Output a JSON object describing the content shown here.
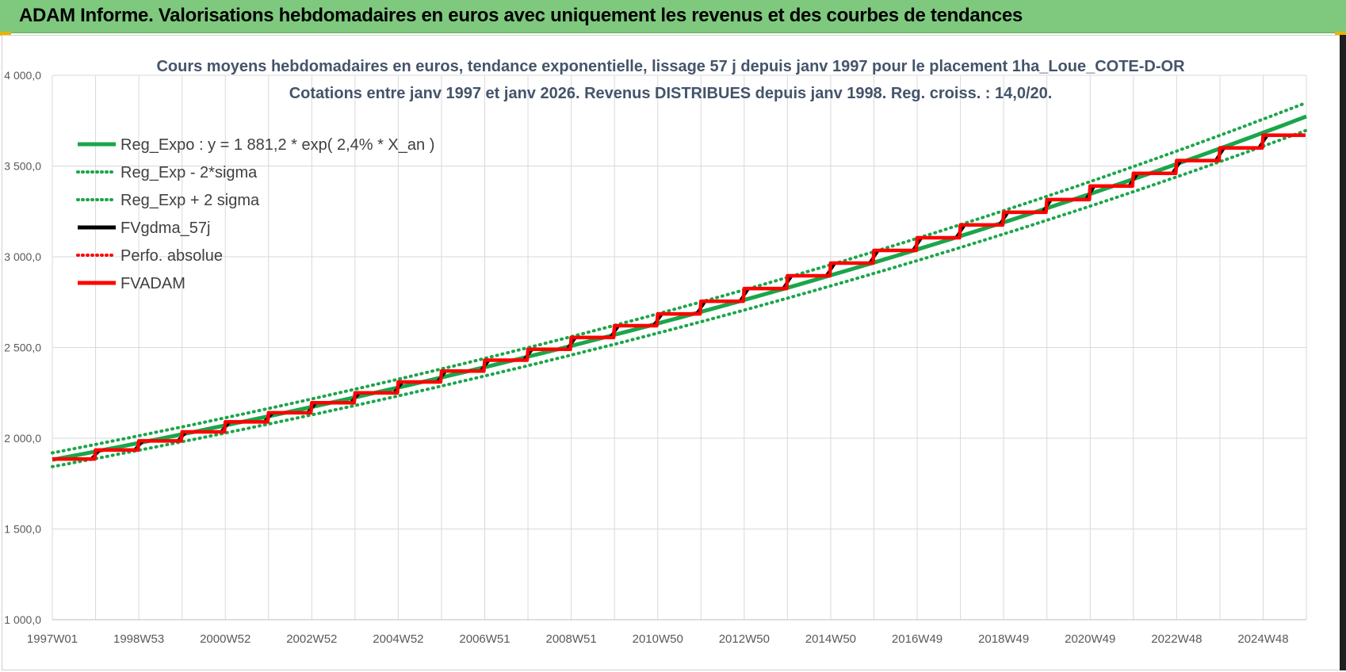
{
  "header": {
    "title": "ADAM Informe. Valorisations hebdomadaires en euros avec uniquement les revenus et des courbes de tendances"
  },
  "colors": {
    "banner": "#7ec97e",
    "trend": "#1aa64a",
    "band": "#1aa64a",
    "smooth": "#000000",
    "perf": "#ff0000",
    "fvadam": "#ff0000",
    "grid": "#d9d9d9"
  },
  "chart_data": {
    "type": "line",
    "title_line1": "Cours moyens hebdomadaires en euros, tendance exponentielle, lissage 57 j depuis janv 1997  pour le  placement 1ha_Loue_COTE-D-OR",
    "title_line2": "Cotations entre janv 1997 et janv 2026. Revenus DISTRIBUES depuis janv 1998.  Reg. croiss. : 14,0/20.",
    "ylim": [
      1000,
      4000
    ],
    "y_ticks": [
      "1 000,0",
      "1 500,0",
      "2 000,0",
      "2 500,0",
      "3 000,0",
      "3 500,0",
      "4 000,0"
    ],
    "y_tick_values": [
      1000,
      1500,
      2000,
      2500,
      3000,
      3500,
      4000
    ],
    "x_range_years": [
      1997.0,
      2026.0
    ],
    "x_ticks": [
      "1997W01",
      "1998W53",
      "2000W52",
      "2002W52",
      "2004W52",
      "2006W51",
      "2008W51",
      "2010W50",
      "2012W50",
      "2014W50",
      "2016W49",
      "2018W49",
      "2020W49",
      "2022W48",
      "2024W48"
    ],
    "x_tick_years": [
      1997.0,
      1999.0,
      2001.0,
      2003.0,
      2005.0,
      2007.0,
      2009.0,
      2011.0,
      2013.0,
      2015.0,
      2017.0,
      2019.0,
      2021.0,
      2023.0,
      2025.0
    ],
    "grid": true,
    "legend_position": "top-left",
    "legend": [
      {
        "label": "Reg_Expo : y = 1 881,2 * exp( 2,4% *  X_an )",
        "style": "solid",
        "color": "#1aa64a"
      },
      {
        "label": "Reg_Exp - 2*sigma",
        "style": "dotted",
        "color": "#1aa64a"
      },
      {
        "label": "Reg_Exp + 2 sigma",
        "style": "dotted",
        "color": "#1aa64a"
      },
      {
        "label": "FVgdma_57j",
        "style": "solid",
        "color": "#000000"
      },
      {
        "label": "Perfo. absolue",
        "style": "dotted",
        "color": "#ff0000"
      },
      {
        "label": "FVADAM",
        "style": "solid",
        "color": "#ff0000"
      }
    ],
    "trend": {
      "a": 1881.2,
      "rate": 0.024,
      "sigma_band": 38
    },
    "series": [
      {
        "name": "FVADAM",
        "step_years": [
          1997.0,
          1998.0,
          1999.0,
          2000.0,
          2001.0,
          2002.0,
          2003.0,
          2004.0,
          2005.0,
          2006.0,
          2007.0,
          2008.0,
          2009.0,
          2010.0,
          2011.0,
          2012.0,
          2013.0,
          2014.0,
          2015.0,
          2016.0,
          2017.0,
          2018.0,
          2019.0,
          2020.0,
          2021.0,
          2022.0,
          2023.0,
          2024.0,
          2025.0
        ],
        "step_values": [
          1885,
          1935,
          1985,
          2035,
          2090,
          2140,
          2195,
          2250,
          2310,
          2370,
          2430,
          2490,
          2555,
          2620,
          2685,
          2755,
          2825,
          2895,
          2965,
          3035,
          3105,
          3175,
          3245,
          3315,
          3390,
          3460,
          3530,
          3600,
          3670
        ],
        "end_year": 2026.0
      }
    ]
  }
}
